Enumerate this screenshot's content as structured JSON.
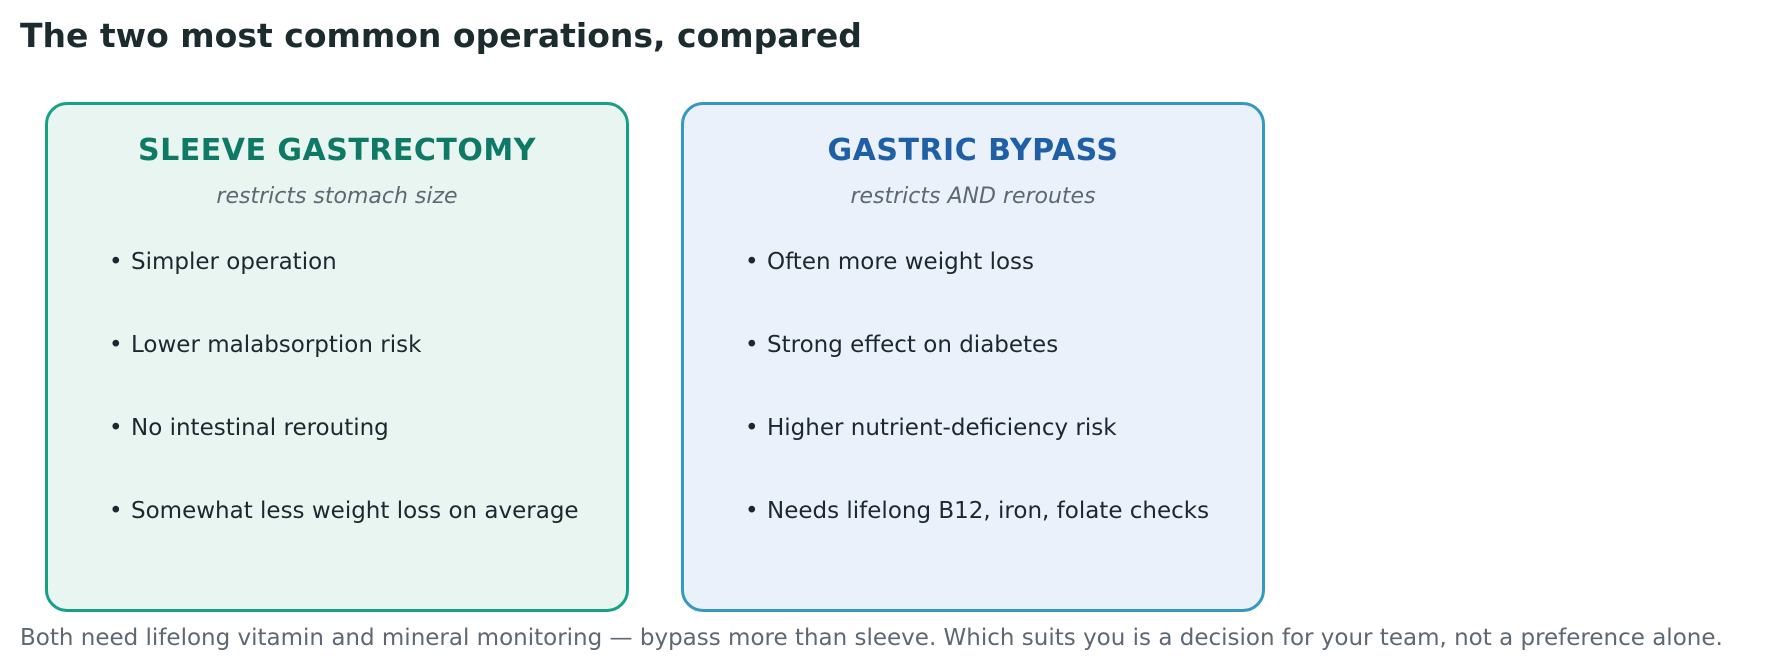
{
  "title": "The two most common operations, compared",
  "cards": [
    {
      "title": "SLEEVE GASTRECTOMY",
      "subtitle": "restricts stomach size",
      "accent": "#16a085",
      "bullets": [
        "Simpler operation",
        "Lower malabsorption risk",
        "No intestinal rerouting",
        "Somewhat less weight loss on average"
      ]
    },
    {
      "title": "GASTRIC BYPASS",
      "subtitle": "restricts AND reroutes",
      "accent": "#3498c0",
      "bullets": [
        "Often more weight loss",
        "Strong effect on diabetes",
        "Higher nutrient-deficiency risk",
        "Needs lifelong B12, iron, folate checks"
      ]
    }
  ],
  "footnote": "Both need lifelong vitamin and mineral monitoring — bypass more than sleeve. Which suits you is a decision for your team, not a preference alone."
}
